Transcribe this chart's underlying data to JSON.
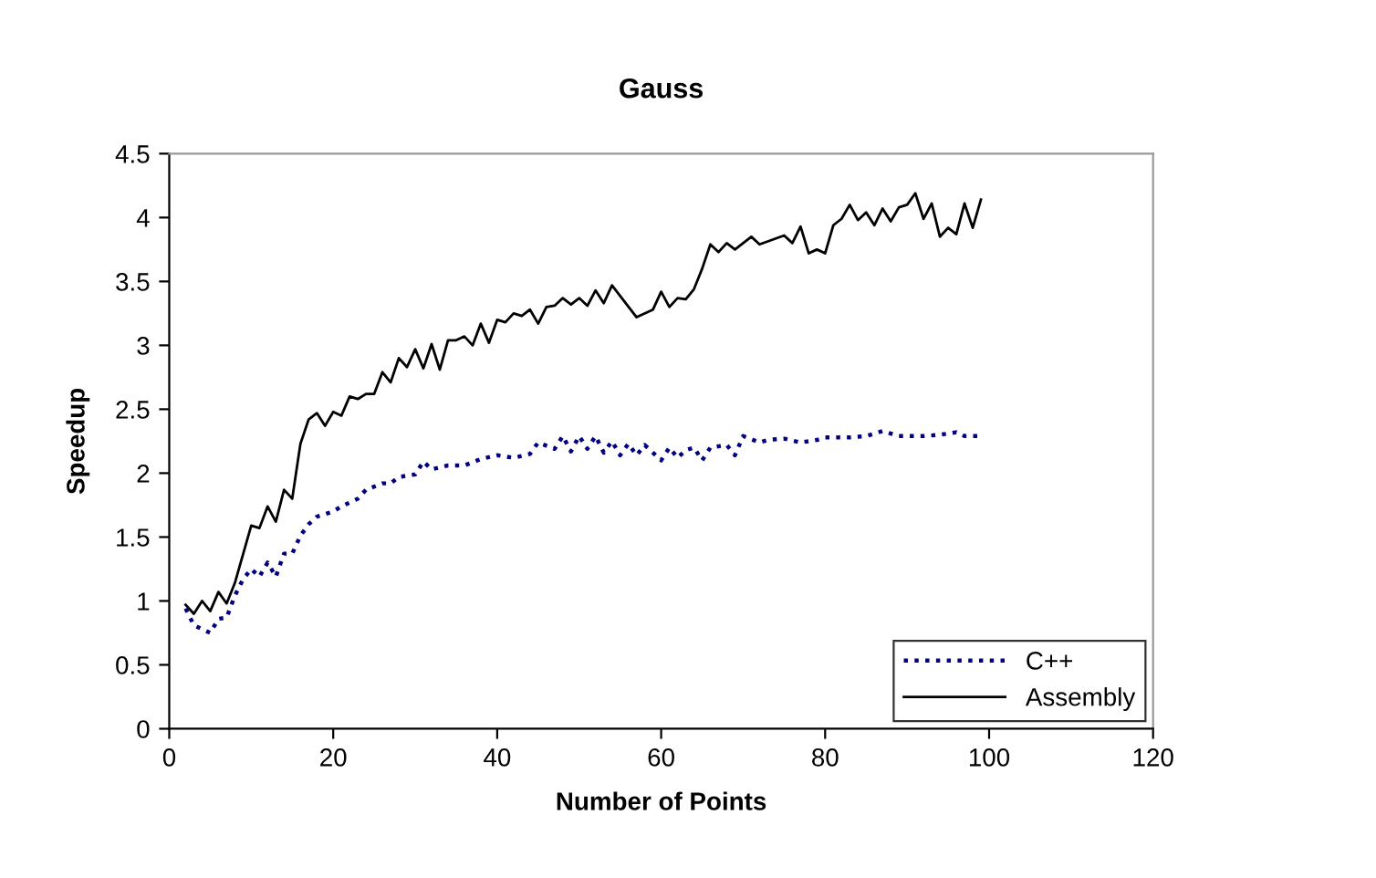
{
  "chart_data": {
    "type": "line",
    "title": "Gauss",
    "xlabel": "Number of Points",
    "ylabel": "Speedup",
    "xlim": [
      0,
      120
    ],
    "xticks": [
      0,
      20,
      40,
      60,
      80,
      100,
      120
    ],
    "ylim": [
      0,
      4.5
    ],
    "yticks": [
      0,
      0.5,
      1,
      1.5,
      2,
      2.5,
      3,
      3.5,
      4,
      4.5
    ],
    "grid": false,
    "legend": "bottom right",
    "marker": "none",
    "series": [
      {
        "name": "C++",
        "color": "#000080",
        "line_style": "dotted",
        "x": [
          2,
          3,
          5,
          6,
          7,
          8,
          9,
          10,
          11,
          12,
          13,
          14,
          15,
          16,
          17,
          18,
          20,
          21,
          23,
          24,
          26,
          27,
          28,
          30,
          31,
          32,
          34,
          36,
          38,
          40,
          42,
          44,
          45,
          47,
          48,
          49,
          50,
          51,
          52,
          53,
          54,
          55,
          56,
          57,
          58,
          60,
          61,
          62,
          63,
          64,
          65,
          66,
          68,
          69,
          70,
          72,
          73,
          75,
          77,
          79,
          80,
          83,
          85,
          87,
          89,
          92,
          94,
          96,
          97,
          99
        ],
        "values": [
          0.94,
          0.81,
          0.75,
          0.86,
          0.87,
          1.04,
          1.17,
          1.25,
          1.19,
          1.3,
          1.19,
          1.37,
          1.37,
          1.51,
          1.6,
          1.66,
          1.7,
          1.74,
          1.8,
          1.87,
          1.92,
          1.92,
          1.97,
          1.99,
          2.09,
          2.03,
          2.06,
          2.06,
          2.11,
          2.14,
          2.12,
          2.15,
          2.24,
          2.19,
          2.29,
          2.17,
          2.29,
          2.19,
          2.29,
          2.16,
          2.25,
          2.14,
          2.23,
          2.14,
          2.22,
          2.1,
          2.2,
          2.12,
          2.18,
          2.2,
          2.1,
          2.2,
          2.22,
          2.14,
          2.29,
          2.24,
          2.26,
          2.27,
          2.24,
          2.26,
          2.28,
          2.28,
          2.29,
          2.33,
          2.29,
          2.29,
          2.3,
          2.32,
          2.29,
          2.29
        ]
      },
      {
        "name": "Assembly",
        "color": "#000000",
        "line_style": "solid",
        "x": [
          2,
          3,
          4,
          5,
          6,
          7,
          8,
          10,
          11,
          12,
          13,
          14,
          15,
          16,
          17,
          18,
          19,
          20,
          21,
          22,
          23,
          24,
          25,
          26,
          27,
          28,
          29,
          30,
          31,
          32,
          33,
          34,
          35,
          36,
          37,
          38,
          39,
          40,
          41,
          42,
          43,
          44,
          45,
          46,
          47,
          48,
          49,
          50,
          51,
          52,
          53,
          54,
          57,
          59,
          60,
          61,
          62,
          63,
          64,
          65,
          66,
          67,
          68,
          69,
          71,
          72,
          75,
          76,
          77,
          78,
          79,
          80,
          81,
          82,
          83,
          84,
          85,
          86,
          87,
          88,
          89,
          90,
          91,
          92,
          93,
          94,
          95,
          96,
          97,
          98,
          99
        ],
        "values": [
          0.97,
          0.9,
          1.0,
          0.92,
          1.07,
          0.98,
          1.14,
          1.59,
          1.57,
          1.74,
          1.62,
          1.87,
          1.8,
          2.23,
          2.42,
          2.47,
          2.37,
          2.48,
          2.45,
          2.6,
          2.58,
          2.62,
          2.62,
          2.79,
          2.71,
          2.9,
          2.83,
          2.97,
          2.82,
          3.01,
          2.81,
          3.04,
          3.04,
          3.07,
          3.0,
          3.17,
          3.02,
          3.2,
          3.18,
          3.25,
          3.23,
          3.28,
          3.17,
          3.3,
          3.31,
          3.37,
          3.32,
          3.37,
          3.31,
          3.43,
          3.33,
          3.47,
          3.22,
          3.28,
          3.42,
          3.3,
          3.37,
          3.36,
          3.44,
          3.6,
          3.79,
          3.73,
          3.8,
          3.75,
          3.85,
          3.79,
          3.86,
          3.8,
          3.93,
          3.72,
          3.75,
          3.72,
          3.94,
          3.99,
          4.1,
          3.98,
          4.04,
          3.94,
          4.07,
          3.97,
          4.08,
          4.1,
          4.19,
          3.99,
          4.11,
          3.85,
          3.92,
          3.87,
          4.11,
          3.92,
          4.14
        ]
      }
    ]
  }
}
